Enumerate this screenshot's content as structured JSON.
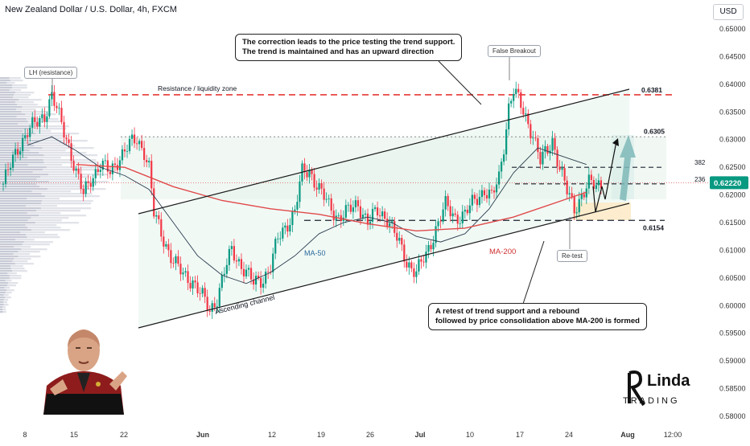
{
  "header": {
    "title": "New Zealand Dollar / U.S. Dollar, 4h, FXCM",
    "currency": "USD"
  },
  "colors": {
    "bull": "#089981",
    "bear": "#f23645",
    "ma200": "#e04a4a",
    "ma50": "#2c3e50",
    "resistance": "#e53935",
    "projection": "#7fb8b8",
    "channel_fill": "#e6f4ec"
  },
  "price_axis": {
    "ticks": [
      "0.65000",
      "0.64500",
      "0.64000",
      "0.63500",
      "0.63000",
      "0.62500",
      "0.62000",
      "0.61500",
      "0.61000",
      "0.60500",
      "0.60000",
      "0.59500",
      "0.59000",
      "0.58500",
      "0.58000"
    ],
    "last_price": "0.62220"
  },
  "time_axis": {
    "ticks": [
      "8",
      "15",
      "22",
      "Jun",
      "12",
      "19",
      "26",
      "Jul",
      "10",
      "17",
      "24",
      "Aug",
      "12:00"
    ]
  },
  "annotations": {
    "callout_top": [
      "The correction leads to the price testing the trend support.",
      "The trend is maintained and has an upward direction"
    ],
    "callout_bottom": [
      "A retest of trend support and a rebound",
      "followed by price consolidation above MA-200 is formed"
    ],
    "lh": "LH (resistance)",
    "false_breakout": "False Breakout",
    "retest": "Re-test",
    "resistance_zone": "Resistance / liquidity zone",
    "ascending_channel": "Ascending channel",
    "ma50": "MA-50",
    "ma200": "MA-200",
    "level_6381": "0.6381",
    "level_6305": "0.6305",
    "level_6154": "0.6154",
    "fib_382": "382",
    "fib_236": "236"
  },
  "logo": {
    "line1": "Linda",
    "line2": "TRADING"
  },
  "chart_data": {
    "type": "candlestick",
    "title": "New Zealand Dollar / U.S. Dollar, 4h, FXCM",
    "x_ticks": [
      "8",
      "15",
      "22",
      "Jun",
      "12",
      "19",
      "26",
      "Jul",
      "10",
      "17",
      "24",
      "Aug",
      "12:00"
    ],
    "ylim": [
      0.578,
      0.652
    ],
    "close_path": [
      [
        0,
        0.622
      ],
      [
        6,
        0.6285
      ],
      [
        10,
        0.6315
      ],
      [
        14,
        0.633
      ],
      [
        17,
        0.6345
      ],
      [
        20,
        0.638
      ],
      [
        23,
        0.634
      ],
      [
        27,
        0.629
      ],
      [
        30,
        0.624
      ],
      [
        33,
        0.62
      ],
      [
        36,
        0.623
      ],
      [
        40,
        0.6255
      ],
      [
        44,
        0.624
      ],
      [
        48,
        0.627
      ],
      [
        52,
        0.629
      ],
      [
        55,
        0.63
      ],
      [
        58,
        0.628
      ],
      [
        60,
        0.625
      ],
      [
        62,
        0.6165
      ],
      [
        66,
        0.612
      ],
      [
        70,
        0.608
      ],
      [
        74,
        0.6055
      ],
      [
        78,
        0.6045
      ],
      [
        82,
        0.6015
      ],
      [
        85,
        0.599
      ],
      [
        88,
        0.6015
      ],
      [
        91,
        0.606
      ],
      [
        94,
        0.61
      ],
      [
        97,
        0.608
      ],
      [
        100,
        0.606
      ],
      [
        103,
        0.604
      ],
      [
        107,
        0.605
      ],
      [
        110,
        0.607
      ],
      [
        113,
        0.612
      ],
      [
        117,
        0.615
      ],
      [
        120,
        0.617
      ],
      [
        123,
        0.624
      ],
      [
        126,
        0.6245
      ],
      [
        130,
        0.621
      ],
      [
        134,
        0.618
      ],
      [
        138,
        0.616
      ],
      [
        142,
        0.617
      ],
      [
        146,
        0.6185
      ],
      [
        150,
        0.615
      ],
      [
        154,
        0.617
      ],
      [
        158,
        0.616
      ],
      [
        162,
        0.612
      ],
      [
        166,
        0.608
      ],
      [
        170,
        0.606
      ],
      [
        174,
        0.609
      ],
      [
        178,
        0.614
      ],
      [
        182,
        0.618
      ],
      [
        186,
        0.616
      ],
      [
        190,
        0.6165
      ],
      [
        194,
        0.619
      ],
      [
        198,
        0.621
      ],
      [
        201,
        0.6195
      ],
      [
        204,
        0.623
      ],
      [
        206,
        0.629
      ],
      [
        208,
        0.636
      ],
      [
        210,
        0.639
      ],
      [
        212,
        0.637
      ],
      [
        215,
        0.634
      ],
      [
        218,
        0.631
      ],
      [
        221,
        0.626
      ],
      [
        224,
        0.628
      ],
      [
        226,
        0.63
      ],
      [
        229,
        0.625
      ],
      [
        232,
        0.6205
      ],
      [
        235,
        0.6175
      ],
      [
        238,
        0.62
      ],
      [
        241,
        0.622
      ],
      [
        244,
        0.6215
      ],
      [
        246,
        0.6222
      ]
    ],
    "series": [
      {
        "name": "MA-50",
        "values": [
          [
            10,
            0.629
          ],
          [
            20,
            0.6305
          ],
          [
            30,
            0.628
          ],
          [
            40,
            0.625
          ],
          [
            50,
            0.6235
          ],
          [
            60,
            0.621
          ],
          [
            70,
            0.615
          ],
          [
            80,
            0.609
          ],
          [
            90,
            0.6055
          ],
          [
            100,
            0.604
          ],
          [
            110,
            0.606
          ],
          [
            120,
            0.609
          ],
          [
            130,
            0.613
          ],
          [
            140,
            0.615
          ],
          [
            150,
            0.616
          ],
          [
            160,
            0.615
          ],
          [
            170,
            0.6125
          ],
          [
            180,
            0.6115
          ],
          [
            190,
            0.613
          ],
          [
            200,
            0.6175
          ],
          [
            210,
            0.624
          ],
          [
            220,
            0.6285
          ],
          [
            230,
            0.627
          ],
          [
            240,
            0.6255
          ]
        ]
      },
      {
        "name": "MA-200",
        "values": [
          [
            30,
            0.6255
          ],
          [
            50,
            0.625
          ],
          [
            70,
            0.6215
          ],
          [
            90,
            0.619
          ],
          [
            110,
            0.6175
          ],
          [
            130,
            0.6165
          ],
          [
            150,
            0.6148
          ],
          [
            170,
            0.6135
          ],
          [
            190,
            0.614
          ],
          [
            210,
            0.616
          ],
          [
            230,
            0.619
          ],
          [
            240,
            0.6205
          ]
        ]
      }
    ],
    "levels": [
      0.6381,
      0.6305,
      0.6154,
      0.625,
      0.622
    ]
  }
}
